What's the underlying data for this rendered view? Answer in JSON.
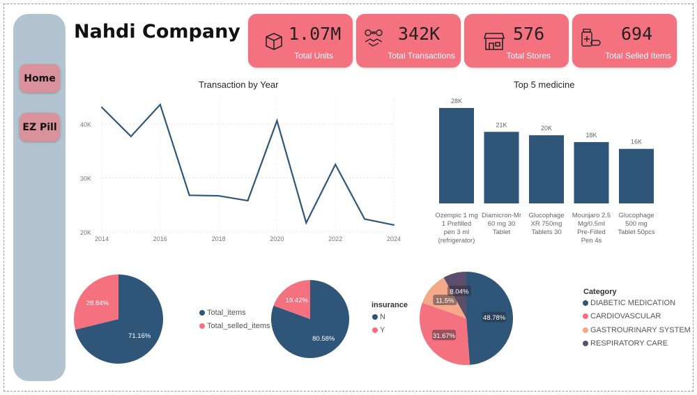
{
  "title": "Nahdi Company",
  "nav": [
    {
      "label": "Home"
    },
    {
      "label": "EZ Pill"
    }
  ],
  "kpis": [
    {
      "value": "1.07M",
      "label": "Total Units",
      "icon": "box-icon"
    },
    {
      "value": "342K",
      "label": "Total Transactions",
      "icon": "handshake-money-icon"
    },
    {
      "value": "576",
      "label": "Total Stores",
      "icon": "store-icon"
    },
    {
      "value": "694",
      "label": "Total Selled Items",
      "icon": "medicine-bottle-icon"
    }
  ],
  "colors": {
    "blue": "#2f5678",
    "pink": "#f4717f",
    "peach": "#f4a98a",
    "purple": "#5c4d6b",
    "kpi": "#f4717f",
    "sidebar": "#b3c3cf"
  },
  "chart_data": [
    {
      "type": "line",
      "title": "Transaction by Year",
      "x": [
        2014,
        2015,
        2016,
        2017,
        2018,
        2019,
        2020,
        2021,
        2022,
        2023,
        2024
      ],
      "values": [
        43100,
        37700,
        43600,
        26800,
        26700,
        25800,
        40600,
        21700,
        32500,
        22400,
        21300
      ],
      "xticks": [
        "2014",
        "2016",
        "2018",
        "2020",
        "2022",
        "2024"
      ],
      "yticks": [
        "20K",
        "30K",
        "40K"
      ],
      "ylim": [
        20000,
        44500
      ],
      "grid": true
    },
    {
      "type": "bar",
      "title": "Top 5 medicine",
      "categories": [
        "Ozempic 1 mg 1 Prefilled pen 3 ml (refrigerator)",
        "Diamicron-Mr 60 mg 30 Tablet",
        "Glucophage XR 750mg Tablets 30",
        "Mounjaro 2.5 Mg/0.5ml Pre-Filled Pen 4s",
        "Glucophage 500 mg Tablet 50pcs"
      ],
      "values": [
        28000,
        21000,
        20000,
        18000,
        16000
      ],
      "labels": [
        "28K",
        "21K",
        "20K",
        "18K",
        "16K"
      ]
    },
    {
      "type": "pie",
      "legend": "right",
      "series": [
        {
          "name": "Total_items",
          "value": 71.16,
          "label": "71.16%"
        },
        {
          "name": "Total_selled_items",
          "value": 28.84,
          "label": "28.84%"
        }
      ]
    },
    {
      "type": "pie",
      "legend_title": "insurance",
      "legend": "left",
      "series": [
        {
          "name": "N",
          "value": 80.58,
          "label": "80.58%"
        },
        {
          "name": "Y",
          "value": 19.42,
          "label": "19.42%"
        }
      ]
    },
    {
      "type": "pie",
      "legend_title": "Category",
      "legend": "right",
      "series": [
        {
          "name": "DIABETIC MEDICATION",
          "value": 48.78,
          "label": "48.78%"
        },
        {
          "name": "CARDIOVASCULAR",
          "value": 31.67,
          "label": "31.67%"
        },
        {
          "name": "GASTROURINARY SYSTEM",
          "value": 11.5,
          "label": "11.5%"
        },
        {
          "name": "RESPIRATORY CARE",
          "value": 8.04,
          "label": "8.04%"
        }
      ]
    }
  ]
}
